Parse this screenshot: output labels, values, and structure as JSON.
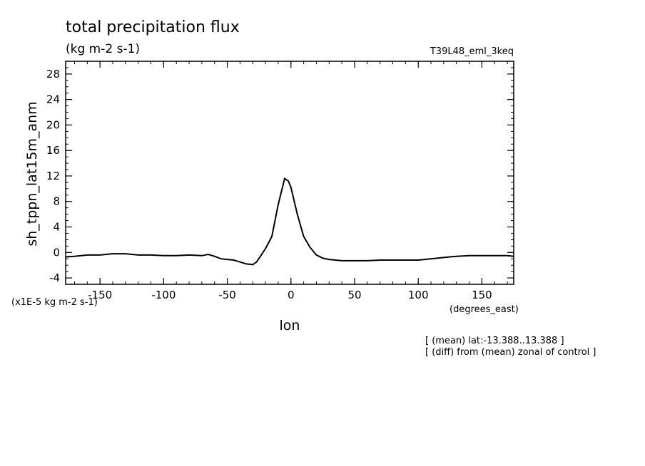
{
  "chart_data": {
    "type": "line",
    "title": "total precipitation flux",
    "subtitle": "(kg m-2 s-1)",
    "experiment": "T39L48_eml_3keq",
    "xlabel": "lon",
    "xunits": "(degrees_east)",
    "ylabel": "sh_tppn_lat15m_anm",
    "yscale_note": "(x1E-5 kg m-2 s-1)",
    "notes": [
      "[ (mean) lat:-13.388..13.388 ]",
      "[ (diff) from (mean) zonal of control ]"
    ],
    "xlim": [
      -177,
      175
    ],
    "ylim": [
      -5,
      30
    ],
    "x_ticks": [
      -150,
      -100,
      -50,
      0,
      50,
      100,
      150
    ],
    "x_tick_labels": [
      "-150",
      "-100",
      "-50",
      "0",
      "50",
      "100",
      "150"
    ],
    "y_ticks": [
      -4,
      0,
      4,
      8,
      12,
      16,
      20,
      24,
      28
    ],
    "y_tick_labels": [
      "-4",
      "0",
      "4",
      "8",
      "12",
      "16",
      "20",
      "24",
      "28"
    ],
    "grid": false,
    "series": [
      {
        "x": [
          -177,
          -170,
          -160,
          -150,
          -140,
          -130,
          -120,
          -110,
          -100,
          -90,
          -80,
          -70,
          -65,
          -60,
          -55,
          -50,
          -45,
          -40,
          -35,
          -30,
          -27,
          -24,
          -20,
          -15,
          -10,
          -5,
          -2,
          0,
          2,
          5,
          10,
          15,
          20,
          25,
          30,
          35,
          40,
          50,
          60,
          70,
          80,
          90,
          100,
          110,
          120,
          130,
          140,
          150,
          160,
          170,
          175
        ],
        "y": [
          -0.7,
          -0.6,
          -0.4,
          -0.4,
          -0.2,
          -0.2,
          -0.4,
          -0.4,
          -0.5,
          -0.5,
          -0.4,
          -0.5,
          -0.3,
          -0.6,
          -1.0,
          -1.1,
          -1.2,
          -1.5,
          -1.8,
          -1.9,
          -1.5,
          -0.6,
          0.6,
          2.5,
          7.5,
          11.6,
          11.2,
          10.2,
          8.5,
          6.0,
          2.5,
          0.8,
          -0.4,
          -0.9,
          -1.1,
          -1.2,
          -1.3,
          -1.3,
          -1.3,
          -1.2,
          -1.2,
          -1.2,
          -1.2,
          -1.0,
          -0.8,
          -0.6,
          -0.5,
          -0.5,
          -0.5,
          -0.5,
          -0.6
        ]
      }
    ]
  }
}
